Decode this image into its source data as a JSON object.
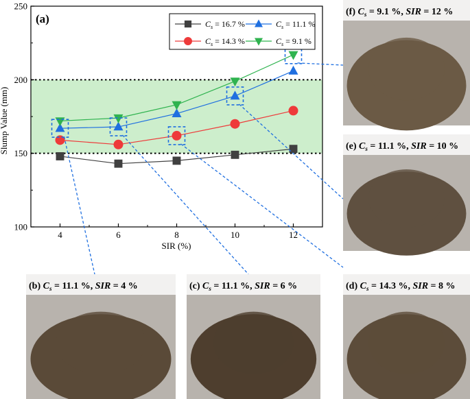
{
  "chart_data": {
    "type": "line",
    "panel_label": "(a)",
    "xlabel": "SIR (%)",
    "ylabel": "Slump Value (mm)",
    "x": [
      4,
      6,
      8,
      10,
      12
    ],
    "xlim": [
      3,
      13
    ],
    "ylim": [
      100,
      250
    ],
    "xticks": [
      "4",
      "6",
      "8",
      "10",
      "12"
    ],
    "yticks": [
      "100",
      "150",
      "200",
      "250"
    ],
    "band": {
      "from": 150,
      "to": 200,
      "color": "#cdeecc"
    },
    "reference_lines": [
      150,
      200
    ],
    "legend": {
      "placement": "top-right",
      "columns": 2
    },
    "series": [
      {
        "name_sym": "C",
        "name_sub": "s",
        "name_rest": " = 16.7 %",
        "marker": "square",
        "color": "#404040",
        "values": [
          148,
          143,
          145,
          149,
          153
        ]
      },
      {
        "name_sym": "C",
        "name_sub": "s",
        "name_rest": " = 11.1 %",
        "marker": "triangle-up",
        "color": "#1f6fe0",
        "values": [
          167,
          168,
          177,
          189,
          206
        ]
      },
      {
        "name_sym": "C",
        "name_sub": "s",
        "name_rest": " = 14.3 %",
        "marker": "circle",
        "color": "#ee3a3a",
        "values": [
          159,
          156,
          162,
          170,
          179
        ]
      },
      {
        "name_sym": "C",
        "name_sub": "s",
        "name_rest": " = 9.1 %",
        "marker": "triangle-down",
        "color": "#2fb34f",
        "values": [
          172,
          174,
          183,
          199,
          217
        ]
      }
    ],
    "highlighted_points": [
      {
        "series": 1,
        "x": 4,
        "photo": "b"
      },
      {
        "series": 1,
        "x": 6,
        "photo": "c"
      },
      {
        "series": 2,
        "x": 8,
        "photo": "d"
      },
      {
        "series": 1,
        "x": 10,
        "photo": "e"
      },
      {
        "series": 3,
        "x": 12,
        "photo": "f"
      }
    ]
  },
  "photos": [
    {
      "id": "f",
      "label": "(f)",
      "cs": "9.1",
      "sir": "12",
      "color": "#6b5a45"
    },
    {
      "id": "e",
      "label": "(e)",
      "cs": "11.1",
      "sir": "10",
      "color": "#5f5040"
    },
    {
      "id": "b",
      "label": "(b)",
      "cs": "11.1",
      "sir": "4",
      "color": "#5a4a38"
    },
    {
      "id": "c",
      "label": "(c)",
      "cs": "11.1",
      "sir": "6",
      "color": "#4e3e2e"
    },
    {
      "id": "d",
      "label": "(d)",
      "cs": "14.3",
      "sir": "8",
      "color": "#5c4c3a"
    }
  ],
  "caption_parts": {
    "cs_sym": "C",
    "cs_sub": "s",
    "eq": " = ",
    "pct": " %",
    "sep": ", ",
    "sir_label": "SIR"
  }
}
